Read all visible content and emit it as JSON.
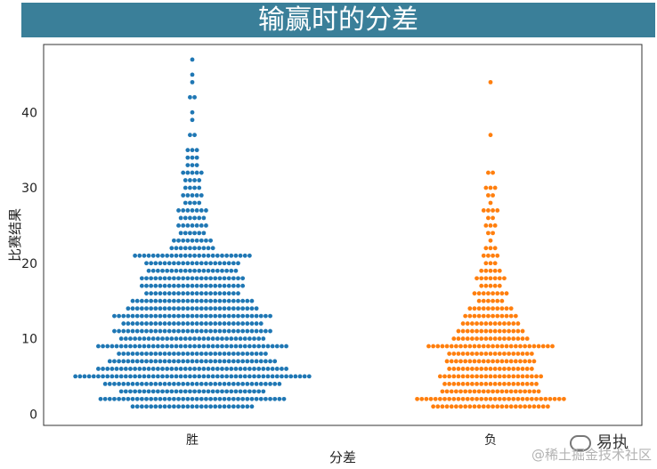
{
  "chart_data": {
    "type": "swarm",
    "title": "输赢时的分差",
    "xlabel": "分差",
    "ylabel": "比赛结果",
    "categories": [
      "胜",
      "负"
    ],
    "ylim": [
      -1.5,
      49
    ],
    "yticks": [
      0,
      10,
      20,
      30,
      40
    ],
    "series": [
      {
        "category": "胜",
        "color": "#1f77b4",
        "counts": {
          "1": 27,
          "2": 41,
          "3": 32,
          "4": 39,
          "5": 52,
          "6": 42,
          "7": 37,
          "8": 33,
          "9": 42,
          "10": 32,
          "11": 35,
          "12": 31,
          "13": 35,
          "14": 29,
          "15": 27,
          "16": 21,
          "17": 23,
          "18": 23,
          "19": 20,
          "20": 21,
          "21": 26,
          "22": 10,
          "23": 9,
          "24": 6,
          "25": 7,
          "26": 6,
          "27": 7,
          "28": 4,
          "29": 5,
          "30": 4,
          "31": 4,
          "32": 5,
          "33": 3,
          "34": 3,
          "35": 3,
          "37": 2,
          "39": 1,
          "40": 1,
          "42": 2,
          "44": 1,
          "45": 1,
          "47": 1
        }
      },
      {
        "category": "负",
        "color": "#ff7f0e",
        "counts": {
          "1": 26,
          "2": 33,
          "3": 22,
          "4": 21,
          "5": 23,
          "6": 19,
          "7": 20,
          "8": 19,
          "9": 28,
          "10": 17,
          "11": 15,
          "12": 13,
          "13": 12,
          "14": 10,
          "15": 6,
          "16": 8,
          "17": 5,
          "18": 7,
          "19": 5,
          "20": 3,
          "21": 4,
          "22": 3,
          "23": 1,
          "24": 2,
          "25": 3,
          "26": 2,
          "27": 4,
          "28": 1,
          "29": 2,
          "30": 3,
          "32": 2,
          "37": 1,
          "44": 1
        }
      }
    ]
  },
  "watermark": {
    "brand": "易执",
    "community": "@稀土掘金技术社区"
  }
}
